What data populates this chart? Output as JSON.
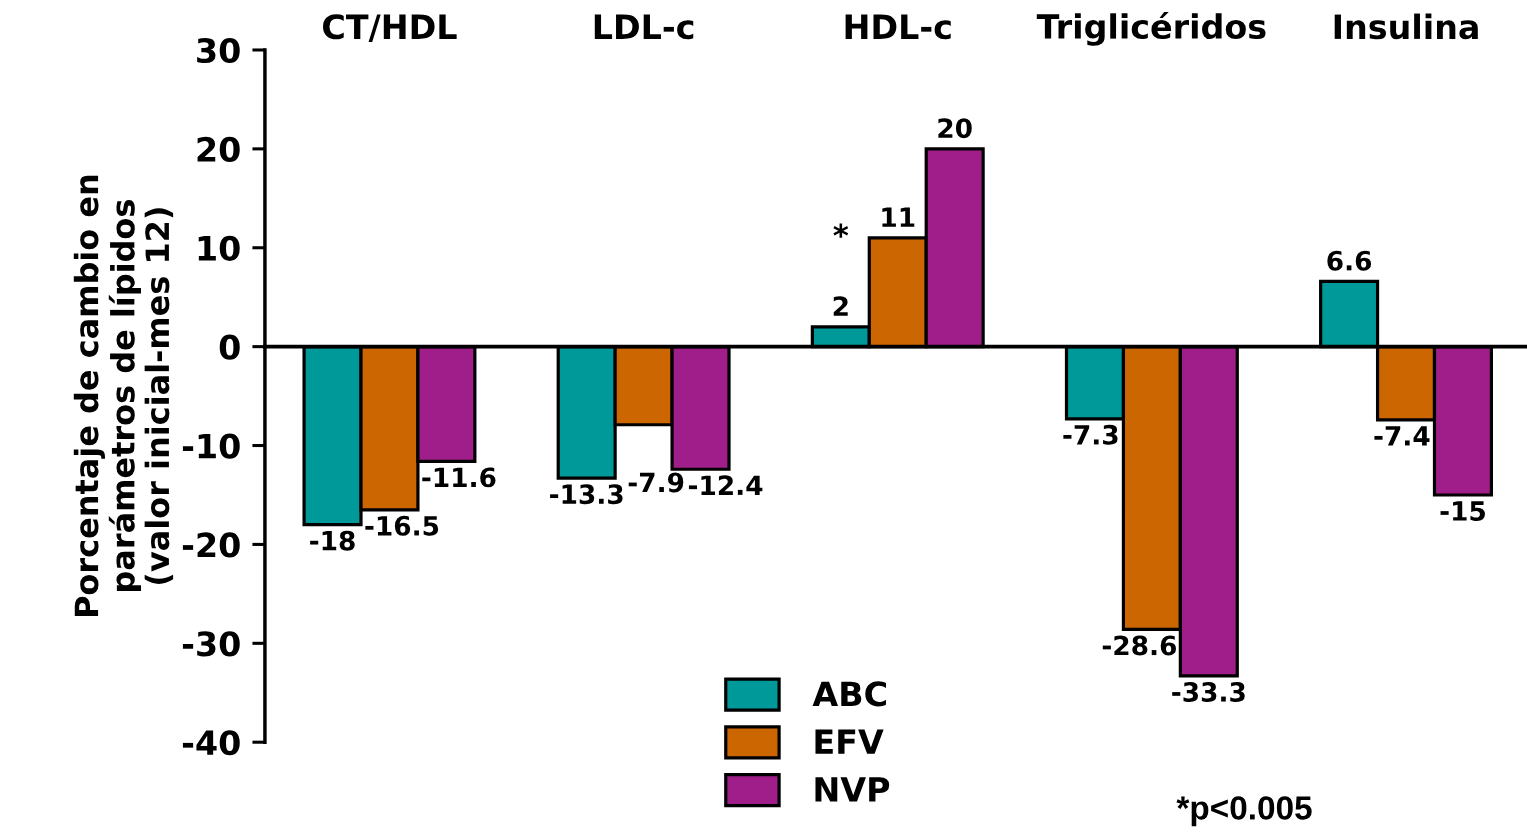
{
  "chart_data": {
    "type": "bar",
    "ylabel": "Porcentaje de cambio en\nparámetros de lípidos\n(valor inicial-mes 12)",
    "categories": [
      "CT/HDL",
      "LDL-c",
      "HDL-c",
      "Triglicéridos",
      "Insulina"
    ],
    "series": [
      {
        "name": "ABC",
        "color": "#009999",
        "values": [
          -18,
          -13.3,
          2,
          -7.3,
          6.6
        ]
      },
      {
        "name": "EFV",
        "color": "#cc6600",
        "values": [
          -16.5,
          -7.9,
          11,
          -28.6,
          -7.4
        ]
      },
      {
        "name": "NVP",
        "color": "#a01e8a",
        "values": [
          -11.6,
          -12.4,
          20,
          -33.3,
          -15
        ]
      }
    ],
    "ylim": [
      -40,
      30
    ],
    "yticks": [
      -40,
      -30,
      -20,
      -10,
      0,
      10,
      20,
      30
    ],
    "legend": "bottom",
    "data_labels": true,
    "annotations": [
      {
        "text": "*",
        "x": "HDL-c",
        "y": 11
      },
      "*p<0.005"
    ]
  }
}
